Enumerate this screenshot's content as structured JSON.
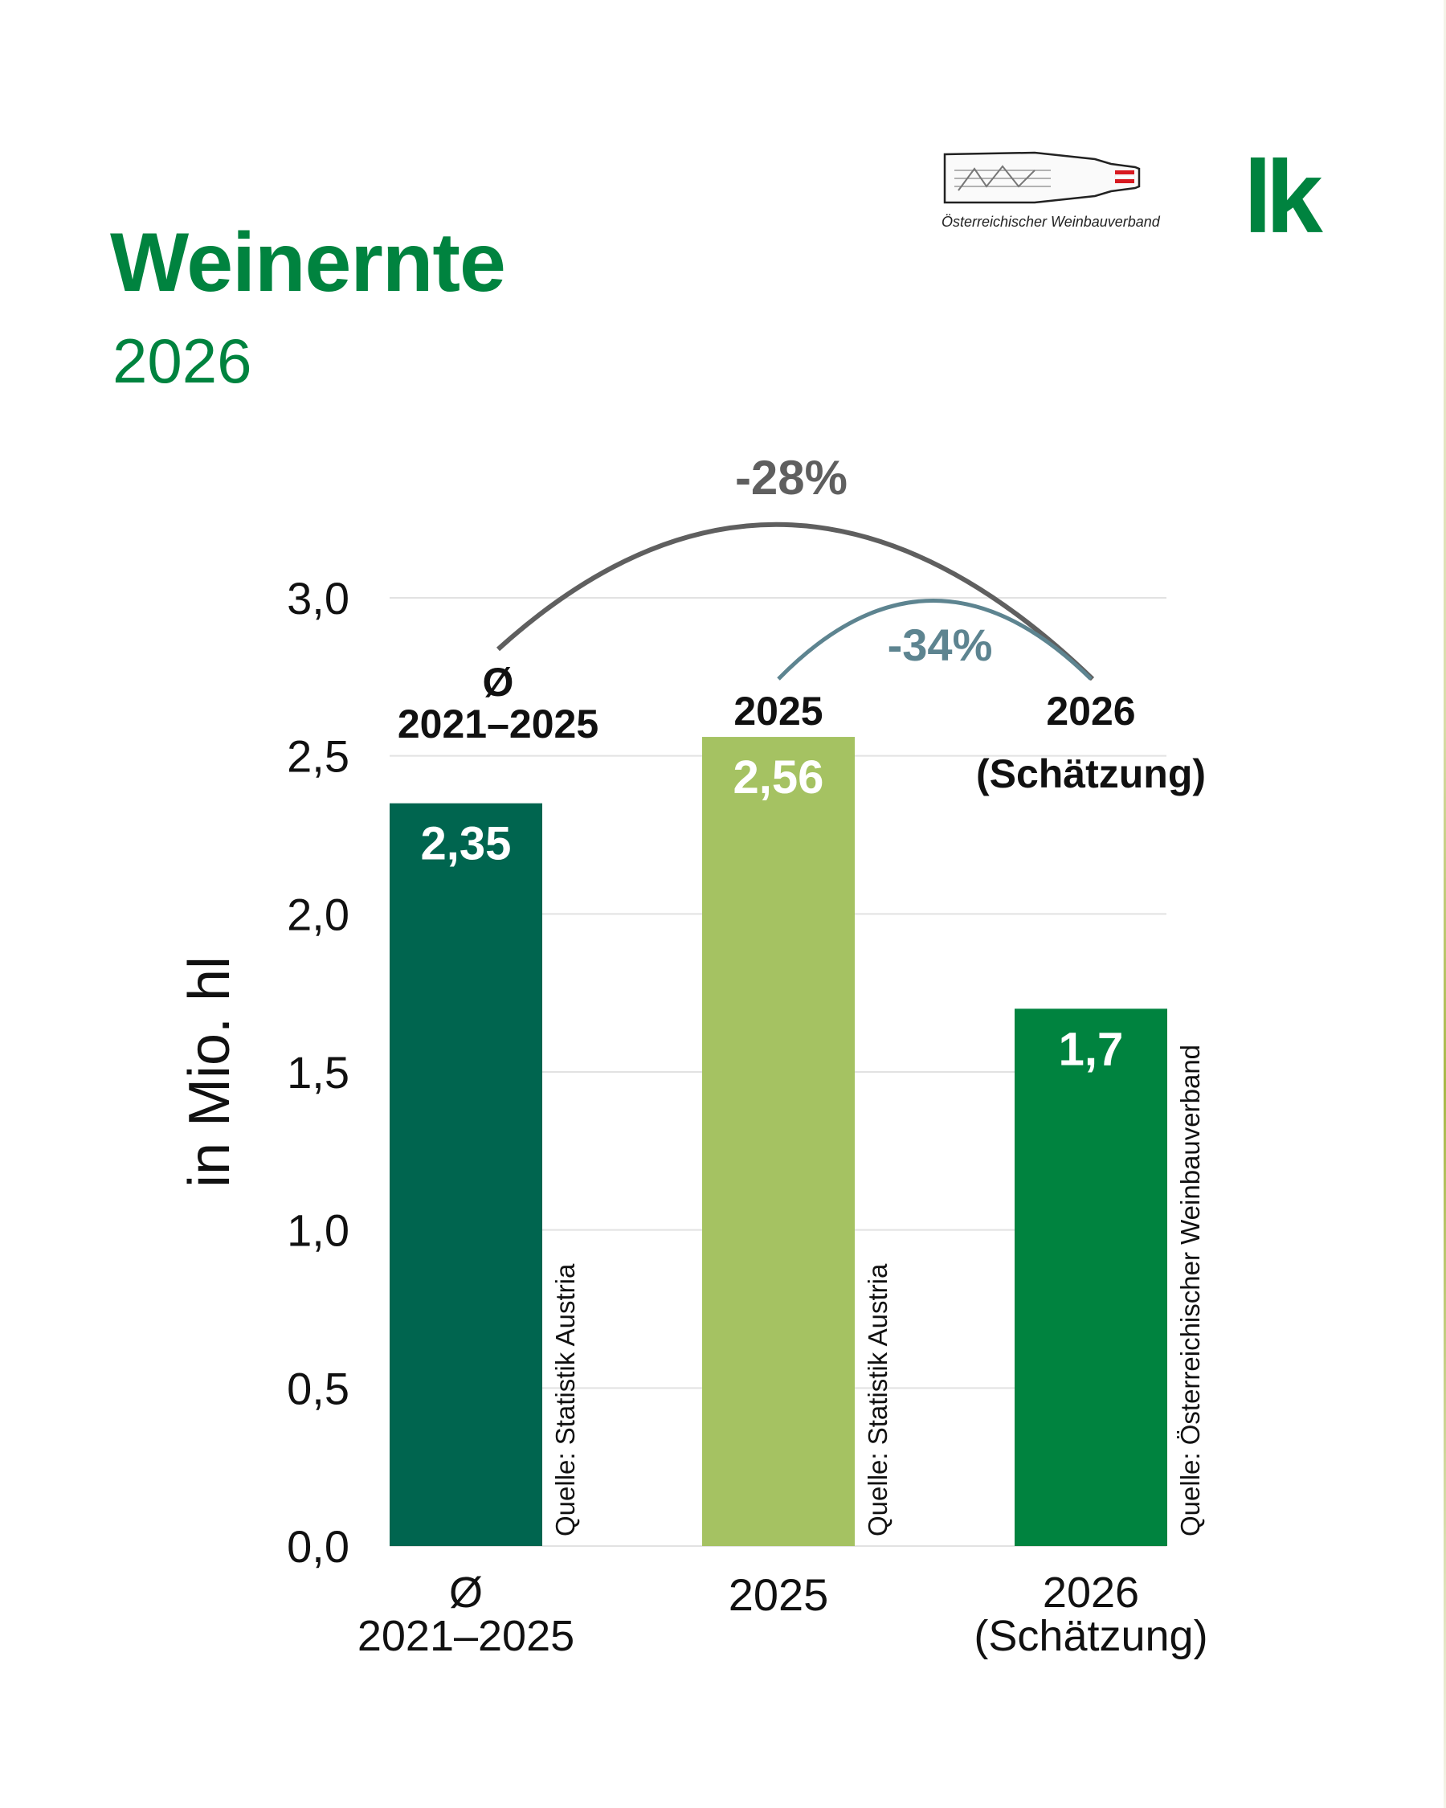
{
  "header": {
    "title": "Weinernte",
    "subtitle": "2026",
    "logo_text": "Österreichischer Weinbauverband",
    "lk_logo": "lk"
  },
  "colors": {
    "brand_green": "#00833f",
    "bar_dark": "#00654f",
    "bar_light": "#a5c262",
    "bar_mid": "#00833f",
    "arc_total": "#5f5f5f",
    "arc_change": "#5d8490",
    "grid": "#e2e2e2"
  },
  "chart_data": {
    "type": "bar",
    "ylabel": "in Mio. hl",
    "ylim": [
      0,
      3.0
    ],
    "yticks": [
      "0,0",
      "0,5",
      "1,0",
      "1,5",
      "2,0",
      "2,5",
      "3,0"
    ],
    "grid": true,
    "categories": [
      {
        "line1": "Ø",
        "line2": "2021–2025"
      },
      {
        "line1": "2025",
        "line2": ""
      },
      {
        "line1": "2026",
        "line2": "(Schätzung)"
      }
    ],
    "values": [
      2.35,
      2.56,
      1.7
    ],
    "value_labels": [
      "2,35",
      "2,56",
      "1,7"
    ],
    "sources": [
      "Quelle: Statistik Austria",
      "Quelle: Statistik Austria",
      "Quelle: Österreichischer Weinbauverband"
    ],
    "annotations": [
      {
        "from": 0,
        "to": 2,
        "label": "-28%"
      },
      {
        "from": 1,
        "to": 2,
        "label": "-34%"
      }
    ]
  }
}
